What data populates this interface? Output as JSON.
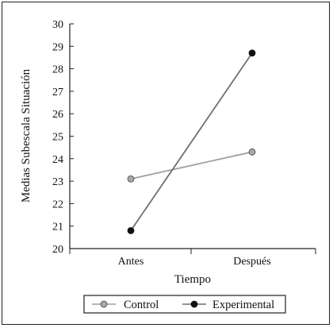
{
  "chart_data": {
    "type": "line",
    "categories": [
      "Antes",
      "Después"
    ],
    "series": [
      {
        "name": "Control",
        "values": [
          23.1,
          24.3
        ],
        "line_color": "#a0a0a0",
        "marker_color": "#a8a8a8"
      },
      {
        "name": "Experimental",
        "values": [
          20.8,
          28.7
        ],
        "line_color": "#707070",
        "marker_color": "#111111"
      }
    ],
    "xlabel": "Tiempo",
    "ylabel": "Medias Subescala Situación",
    "ylim": [
      20,
      30
    ],
    "yticks": [
      "20",
      "21",
      "22",
      "23",
      "24",
      "25",
      "26",
      "27",
      "28",
      "29",
      "30"
    ],
    "grid": false,
    "legend_position": "bottom"
  }
}
